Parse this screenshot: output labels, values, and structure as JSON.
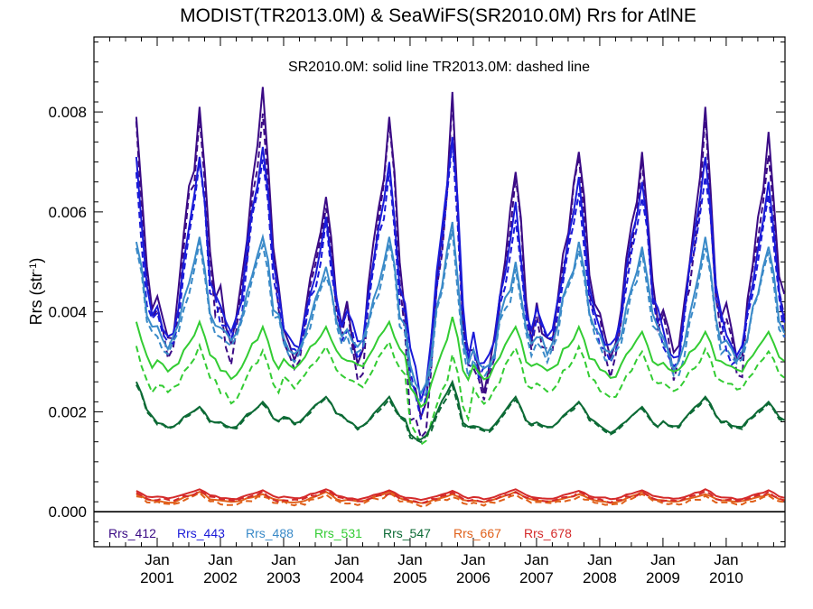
{
  "chart_data": {
    "type": "line",
    "title": "MODIST(TR2013.0M) & SeaWiFS(SR2010.0M)  Rrs for AtlNE",
    "annotation": "SR2010.0M: solid line   TR2013.0M: dashed line",
    "ylabel": "Rrs (str",
    "ylabel_sup": "-1",
    "ylabel_close": ")",
    "xlim": [
      2000.0,
      2010.93
    ],
    "ylim": [
      -0.0007,
      0.0095
    ],
    "yticks": [
      {
        "value": 0.0,
        "label": "0.000"
      },
      {
        "value": 0.002,
        "label": "0.002"
      },
      {
        "value": 0.004,
        "label": "0.004"
      },
      {
        "value": 0.006,
        "label": "0.006"
      },
      {
        "value": 0.008,
        "label": "0.008"
      }
    ],
    "xticks": [
      {
        "value": 2001,
        "month": "Jan",
        "year": "2001"
      },
      {
        "value": 2002,
        "month": "Jan",
        "year": "2002"
      },
      {
        "value": 2003,
        "month": "Jan",
        "year": "2003"
      },
      {
        "value": 2004,
        "month": "Jan",
        "year": "2004"
      },
      {
        "value": 2005,
        "month": "Jan",
        "year": "2005"
      },
      {
        "value": 2006,
        "month": "Jan",
        "year": "2006"
      },
      {
        "value": 2007,
        "month": "Jan",
        "year": "2007"
      },
      {
        "value": 2008,
        "month": "Jan",
        "year": "2008"
      },
      {
        "value": 2009,
        "month": "Jan",
        "year": "2009"
      },
      {
        "value": 2010,
        "month": "Jan",
        "year": "2010"
      }
    ],
    "zero_line": true,
    "legend_position": "bottom-left",
    "series": [
      {
        "name": "Rrs_412",
        "color": "#3a0a85",
        "peaks": [
          0.0079,
          0.0081,
          0.0085,
          0.0063,
          0.0079,
          0.0084,
          0.0068,
          0.0072,
          0.0072,
          0.0081,
          0.0076
        ],
        "troughs": [
          0.0031,
          0.0033,
          0.0034,
          0.0031,
          0.0032,
          0.0017,
          0.0026,
          0.0033,
          0.0031,
          0.0029,
          0.0031
        ]
      },
      {
        "name": "Rrs_443",
        "color": "#1a1ad8",
        "peaks": [
          0.0071,
          0.0071,
          0.0073,
          0.0059,
          0.007,
          0.0075,
          0.0062,
          0.0067,
          0.0066,
          0.0071,
          0.0066
        ],
        "troughs": [
          0.0032,
          0.0033,
          0.0035,
          0.0032,
          0.0033,
          0.0021,
          0.0028,
          0.0034,
          0.0032,
          0.0029,
          0.0031
        ]
      },
      {
        "name": "Rrs_488",
        "color": "#3a8ac8",
        "peaks": [
          0.0054,
          0.0055,
          0.0055,
          0.0049,
          0.0055,
          0.0058,
          0.005,
          0.0054,
          0.0053,
          0.0055,
          0.0053
        ],
        "troughs": [
          0.0032,
          0.0033,
          0.0034,
          0.0031,
          0.0032,
          0.0024,
          0.0028,
          0.0032,
          0.0031,
          0.0029,
          0.003
        ]
      },
      {
        "name": "Rrs_531",
        "color": "#33cc33",
        "peaks": [
          0.0038,
          0.0038,
          0.0037,
          0.0037,
          0.0038,
          0.0039,
          0.0037,
          0.0037,
          0.0036,
          0.0036,
          0.0036
        ],
        "troughs": [
          0.0027,
          0.0028,
          0.0027,
          0.0029,
          0.0029,
          0.0022,
          0.0027,
          0.0028,
          0.0027,
          0.0028,
          0.0028
        ]
      },
      {
        "name": "Rrs_547",
        "color": "#0c6a35",
        "peaks": [
          0.0026,
          0.0021,
          0.0022,
          0.0023,
          0.0023,
          0.0026,
          0.0023,
          0.0022,
          0.0021,
          0.0023,
          0.0022
        ],
        "troughs": [
          0.0017,
          0.0017,
          0.0017,
          0.0018,
          0.0017,
          0.0014,
          0.0016,
          0.0017,
          0.0016,
          0.0017,
          0.0017
        ]
      },
      {
        "name": "Rrs_667",
        "color": "#e0601a",
        "peaks": [
          0.00035,
          0.0004,
          0.00035,
          0.0004,
          0.0004,
          0.00035,
          0.0004,
          0.00035,
          0.0004,
          0.00035,
          0.00035
        ],
        "troughs": [
          0.0002,
          0.00018,
          0.0002,
          0.00018,
          0.0002,
          0.00018,
          0.0002,
          0.0002,
          0.00018,
          0.0002,
          0.0002
        ]
      },
      {
        "name": "Rrs_678",
        "color": "#d42a2a",
        "peaks": [
          0.00042,
          0.00045,
          0.00043,
          0.00045,
          0.00043,
          0.00042,
          0.00045,
          0.00042,
          0.00043,
          0.00045,
          0.00043
        ],
        "troughs": [
          0.00025,
          0.00027,
          0.00025,
          0.00027,
          0.00025,
          0.00024,
          0.00026,
          0.00025,
          0.00026,
          0.00025,
          0.00025
        ]
      }
    ],
    "series_notes": "Monthly series Sep 2000 - Dec 2010; seasonal peak each September, trough each spring; dashed (TR2013.0M) slightly below solid for green/blue bands."
  }
}
